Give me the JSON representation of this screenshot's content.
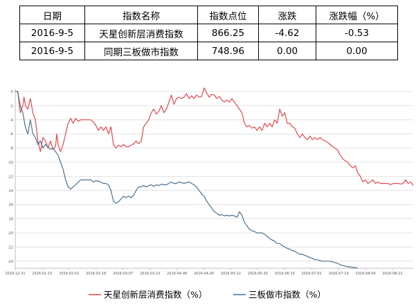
{
  "table": {
    "headers": [
      "日期",
      "指数名称",
      "指数点位",
      "涨跌",
      "涨跌幅（%）"
    ],
    "rows": [
      [
        "2016-9-5",
        "天星创新层消费指数",
        "866.25",
        "-4.62",
        "-0.53"
      ],
      [
        "2016-9-5",
        "同期三板做市指数",
        "748.96",
        "0.00",
        "0.00"
      ]
    ]
  },
  "chart_data": {
    "type": "line",
    "title": "",
    "xlabel": "",
    "ylabel": "",
    "ylim": [
      -25,
      0
    ],
    "yticks": [
      0,
      -2,
      -4,
      -6,
      -8,
      -10,
      -12,
      -14,
      -16,
      -18,
      -20,
      -22,
      -24
    ],
    "x_tick_labels": [
      "2016-12-31",
      "2016-01-15",
      "2016-02-02",
      "2016-02-18",
      "2016-03-07",
      "2016-03-23",
      "2016-04-08",
      "2016-04-26",
      "2016-05-12",
      "2016-05-30",
      "2016-06-15",
      "2016-07-01",
      "2016-07-19",
      "2016-08-04",
      "2016-08-22"
    ],
    "grid": "horizontal",
    "legend_position": "bottom",
    "colors": {
      "series1": "#e8474b",
      "series2": "#49708f",
      "grid": "#dcdcdc",
      "axis": "#bfbfbf"
    },
    "series": [
      {
        "name": "天星创新层消费指数（%）",
        "points": [
          [
            0,
            0
          ],
          [
            1,
            0
          ],
          [
            2,
            -3
          ],
          [
            3,
            -2
          ],
          [
            3.5,
            -0.8
          ],
          [
            4,
            -2
          ],
          [
            5,
            -2.5
          ],
          [
            6,
            -1
          ],
          [
            7,
            -3
          ],
          [
            8,
            -4
          ],
          [
            9,
            -7
          ],
          [
            10,
            -8.5
          ],
          [
            11,
            -6.5
          ],
          [
            12,
            -7
          ],
          [
            13,
            -8
          ],
          [
            14,
            -7
          ],
          [
            15,
            -8.2
          ],
          [
            16,
            -7.8
          ],
          [
            16.5,
            -6
          ],
          [
            17,
            -7.5
          ],
          [
            18,
            -8.5
          ],
          [
            19,
            -7.5
          ],
          [
            20,
            -6
          ],
          [
            21,
            -4.5
          ],
          [
            22,
            -3.8
          ],
          [
            23,
            -4.5
          ],
          [
            24,
            -3.8
          ],
          [
            25,
            -4.2
          ],
          [
            26,
            -4
          ],
          [
            27,
            -4
          ],
          [
            28,
            -4
          ],
          [
            29,
            -4
          ],
          [
            30,
            -4
          ],
          [
            31,
            -4.3
          ],
          [
            32,
            -4.8
          ],
          [
            33,
            -5.5
          ],
          [
            34,
            -5
          ],
          [
            35,
            -5.5
          ],
          [
            36,
            -5
          ],
          [
            37,
            -6
          ],
          [
            38,
            -5
          ],
          [
            39,
            -7.5
          ],
          [
            40,
            -8
          ],
          [
            41,
            -7.6
          ],
          [
            42,
            -7.8
          ],
          [
            43,
            -7.5
          ],
          [
            44,
            -7.8
          ],
          [
            45,
            -7.8
          ],
          [
            46,
            -7.6
          ],
          [
            47,
            -7.4
          ],
          [
            48,
            -7
          ],
          [
            49,
            -7.4
          ],
          [
            50,
            -7
          ],
          [
            51,
            -5
          ],
          [
            52,
            -4.5
          ],
          [
            53,
            -4
          ],
          [
            54,
            -3
          ],
          [
            55,
            -2.5
          ],
          [
            56,
            -3.2
          ],
          [
            57,
            -2.8
          ],
          [
            58,
            -2
          ],
          [
            59,
            -3
          ],
          [
            60,
            -2.5
          ],
          [
            61,
            -1.5
          ],
          [
            62,
            -0.5
          ],
          [
            63,
            -1.8
          ],
          [
            64,
            -1
          ],
          [
            65,
            -0.8
          ],
          [
            66,
            -1
          ],
          [
            67,
            -0.8
          ],
          [
            68,
            -0.3
          ],
          [
            69,
            -1
          ],
          [
            70,
            -0.6
          ],
          [
            71,
            -1
          ],
          [
            72,
            -0.5
          ],
          [
            73,
            -0.8
          ],
          [
            74,
            -0.7
          ],
          [
            75,
            0.5
          ],
          [
            76,
            -0.2
          ],
          [
            77,
            -0.8
          ],
          [
            78,
            -0.4
          ],
          [
            79,
            -0.5
          ],
          [
            80,
            -1
          ],
          [
            81,
            -0.7
          ],
          [
            82,
            -1.2
          ],
          [
            83,
            -1.5
          ],
          [
            84,
            -1.2
          ],
          [
            85,
            -1.5
          ],
          [
            86,
            -1
          ],
          [
            87,
            -1.5
          ],
          [
            88,
            -2
          ],
          [
            89,
            -2.5
          ],
          [
            90,
            -3
          ],
          [
            91,
            -4.5
          ],
          [
            92,
            -5
          ],
          [
            93,
            -4.8
          ],
          [
            94,
            -5.2
          ],
          [
            95,
            -5
          ],
          [
            96,
            -5.5
          ],
          [
            97,
            -5
          ],
          [
            98,
            -5.5
          ],
          [
            99,
            -4.5
          ],
          [
            100,
            -5
          ],
          [
            101,
            -4.5
          ],
          [
            102,
            -5
          ],
          [
            103,
            -4
          ],
          [
            104,
            -4.5
          ],
          [
            105,
            -2.5
          ],
          [
            106,
            -3.5
          ],
          [
            107,
            -3
          ],
          [
            108,
            -4.5
          ],
          [
            109,
            -4.5
          ],
          [
            110,
            -5
          ],
          [
            111,
            -5.2
          ],
          [
            112,
            -6
          ],
          [
            113,
            -6.5
          ],
          [
            114,
            -6
          ],
          [
            115,
            -6.5
          ],
          [
            116,
            -6.8
          ],
          [
            117,
            -6.3
          ],
          [
            118,
            -6.8
          ],
          [
            119,
            -6.5
          ],
          [
            120,
            -6.8
          ],
          [
            121,
            -6.5
          ],
          [
            122,
            -6.8
          ],
          [
            123,
            -7
          ],
          [
            124,
            -7.2
          ],
          [
            125,
            -7.5
          ],
          [
            126,
            -7.8
          ],
          [
            127,
            -8
          ],
          [
            128,
            -8.3
          ],
          [
            129,
            -9
          ],
          [
            130,
            -9.5
          ],
          [
            131,
            -9.8
          ],
          [
            132,
            -10
          ],
          [
            133,
            -10.5
          ],
          [
            134,
            -10.8
          ],
          [
            135,
            -10.5
          ],
          [
            136,
            -11.5
          ],
          [
            137,
            -12
          ],
          [
            138,
            -12.8
          ],
          [
            139,
            -12.5
          ],
          [
            140,
            -13
          ],
          [
            141,
            -12.8
          ],
          [
            142,
            -12.5
          ],
          [
            143,
            -13
          ],
          [
            144,
            -12.8
          ],
          [
            145,
            -13
          ],
          [
            146,
            -13
          ],
          [
            147,
            -13
          ],
          [
            148,
            -13
          ],
          [
            149,
            -13.2
          ],
          [
            150,
            -13
          ],
          [
            151,
            -13
          ],
          [
            152,
            -13
          ],
          [
            153,
            -13.1
          ],
          [
            154,
            -13
          ],
          [
            155,
            -12.5
          ],
          [
            156,
            -13
          ],
          [
            157,
            -12.8
          ],
          [
            158,
            -13.3
          ]
        ]
      },
      {
        "name": "三板做市指数（%）",
        "points": [
          [
            0,
            0
          ],
          [
            1,
            0
          ],
          [
            2,
            -2
          ],
          [
            3,
            -3
          ],
          [
            4,
            -5
          ],
          [
            5,
            -6
          ],
          [
            6,
            -4
          ],
          [
            7,
            -6
          ],
          [
            8,
            -6.5
          ],
          [
            9,
            -7.5
          ],
          [
            10,
            -7
          ],
          [
            11,
            -8
          ],
          [
            12,
            -7.5
          ],
          [
            13,
            -7.8
          ],
          [
            14,
            -8.2
          ],
          [
            15,
            -8
          ],
          [
            16,
            -8.5
          ],
          [
            17,
            -9
          ],
          [
            18,
            -10
          ],
          [
            19,
            -11
          ],
          [
            20,
            -12.5
          ],
          [
            21,
            -13.5
          ],
          [
            22,
            -13.8
          ],
          [
            23,
            -13.5
          ],
          [
            24,
            -13.2
          ],
          [
            25,
            -12.8
          ],
          [
            26,
            -12.5
          ],
          [
            27,
            -12.5
          ],
          [
            28,
            -12.5
          ],
          [
            29,
            -12.5
          ],
          [
            30,
            -12.5
          ],
          [
            31,
            -12.8
          ],
          [
            32,
            -12.6
          ],
          [
            33,
            -12.7
          ],
          [
            34,
            -12.8
          ],
          [
            35,
            -13
          ],
          [
            36,
            -13
          ],
          [
            37,
            -13.2
          ],
          [
            38,
            -14
          ],
          [
            39,
            -15.5
          ],
          [
            40,
            -15.8
          ],
          [
            41,
            -15.6
          ],
          [
            42,
            -15.2
          ],
          [
            43,
            -14.8
          ],
          [
            44,
            -15
          ],
          [
            45,
            -14.8
          ],
          [
            46,
            -15
          ],
          [
            47,
            -14.7
          ],
          [
            48,
            -14
          ],
          [
            49,
            -13.5
          ],
          [
            50,
            -13.5
          ],
          [
            51,
            -13.3
          ],
          [
            52,
            -13.5
          ],
          [
            53,
            -13.3
          ],
          [
            54,
            -13.2
          ],
          [
            55,
            -13.4
          ],
          [
            56,
            -13.2
          ],
          [
            57,
            -13.3
          ],
          [
            58,
            -13.1
          ],
          [
            59,
            -13.2
          ],
          [
            60,
            -13.2
          ],
          [
            61,
            -13
          ],
          [
            62,
            -12.8
          ],
          [
            63,
            -13
          ],
          [
            64,
            -13
          ],
          [
            65,
            -12.8
          ],
          [
            66,
            -12.9
          ],
          [
            67,
            -13
          ],
          [
            68,
            -12.9
          ],
          [
            69,
            -12.8
          ],
          [
            70,
            -13
          ],
          [
            71,
            -13.2
          ],
          [
            72,
            -13.5
          ],
          [
            73,
            -14
          ],
          [
            74,
            -14.5
          ],
          [
            75,
            -14.8
          ],
          [
            76,
            -15.5
          ],
          [
            77,
            -16
          ],
          [
            78,
            -16.5
          ],
          [
            79,
            -17
          ],
          [
            80,
            -17.2
          ],
          [
            81,
            -17.5
          ],
          [
            82,
            -17.4
          ],
          [
            83,
            -17.6
          ],
          [
            84,
            -17.5
          ],
          [
            85,
            -17.6
          ],
          [
            86,
            -17.5
          ],
          [
            87,
            -17.6
          ],
          [
            88,
            -17.8
          ],
          [
            89,
            -17
          ],
          [
            90,
            -17.5
          ],
          [
            91,
            -18.5
          ],
          [
            92,
            -19
          ],
          [
            93,
            -19.5
          ],
          [
            94,
            -19.7
          ],
          [
            95,
            -19.8
          ],
          [
            96,
            -20
          ],
          [
            97,
            -20
          ],
          [
            98,
            -20
          ],
          [
            99,
            -20.2
          ],
          [
            100,
            -20.5
          ],
          [
            101,
            -20.8
          ],
          [
            102,
            -21
          ],
          [
            103,
            -21.2
          ],
          [
            104,
            -21.5
          ],
          [
            105,
            -21.5
          ],
          [
            106,
            -21.8
          ],
          [
            107,
            -22
          ],
          [
            108,
            -22.2
          ],
          [
            109,
            -22.3
          ],
          [
            110,
            -22.5
          ],
          [
            111,
            -22.6
          ],
          [
            112,
            -22.8
          ],
          [
            113,
            -23
          ],
          [
            114,
            -23
          ],
          [
            115,
            -23.2
          ],
          [
            116,
            -23.3
          ],
          [
            117,
            -23.5
          ],
          [
            118,
            -23.6
          ],
          [
            119,
            -23.8
          ],
          [
            120,
            -23.8
          ],
          [
            121,
            -23.9
          ],
          [
            122,
            -24
          ],
          [
            123,
            -24
          ],
          [
            124,
            -24
          ],
          [
            125,
            -24
          ],
          [
            126,
            -24.1
          ],
          [
            127,
            -24.2
          ],
          [
            128,
            -24.3
          ],
          [
            129,
            -24.5
          ],
          [
            130,
            -24.6
          ],
          [
            131,
            -24.7
          ],
          [
            132,
            -24.8
          ],
          [
            133,
            -24.8
          ],
          [
            134,
            -24.9
          ],
          [
            135,
            -24.9
          ],
          [
            136,
            -25
          ]
        ]
      }
    ]
  }
}
